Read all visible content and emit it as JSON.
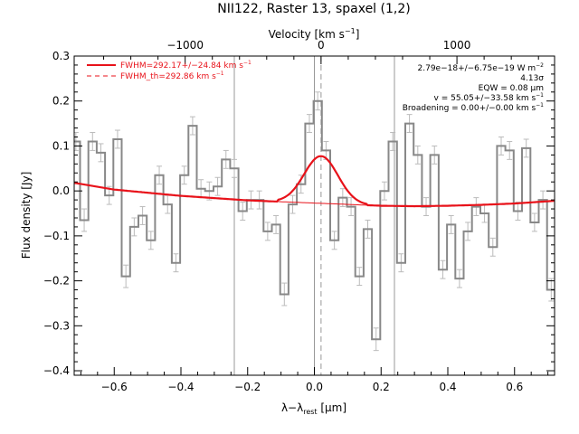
{
  "colors": {
    "data": "#888888",
    "fit": "#e8121a",
    "fit_th": "#e8121a",
    "axes": "#000000",
    "marker": "#999999"
  },
  "chart_data": {
    "type": "line",
    "title": "NII122, Raster 13, spaxel (1,2)",
    "xlabel": "λ−λrest [μm]",
    "xlabel_parts": {
      "main": "λ−λ",
      "sub": "rest",
      "units": " [μm]"
    },
    "ylabel": "Flux density [Jy]",
    "top_axis_label": "Velocity [km s−1]",
    "top_axis_label_parts": {
      "main": "Velocity [km s",
      "sup": "−1",
      "end": "]"
    },
    "xlim": [
      -0.72,
      0.72
    ],
    "ylim": [
      -0.41,
      0.3
    ],
    "x_ticks": [
      -0.6,
      -0.4,
      -0.2,
      0.0,
      0.2,
      0.4,
      0.6
    ],
    "x_tick_labels": [
      "−0.6",
      "−0.4",
      "−0.2",
      "0.0",
      "0.2",
      "0.4",
      "0.6"
    ],
    "y_ticks": [
      -0.4,
      -0.3,
      -0.2,
      -0.1,
      0.0,
      0.1,
      0.2,
      0.3
    ],
    "y_tick_labels": [
      "−0.4",
      "−0.3",
      "−0.2",
      "−0.1",
      "0.0",
      "0.1",
      "0.2",
      "0.3"
    ],
    "top_ticks_velocity": [
      -1000,
      0,
      1000
    ],
    "top_tick_labels": [
      "−1000",
      "0",
      "1000"
    ],
    "line_center_um": 0.02,
    "velocity_scale_km_s_per_um": 2455,
    "vertical_markers": [
      -0.24,
      0.0,
      0.24
    ],
    "center_marker": 0.02,
    "grid": false,
    "legend": {
      "placement": "top-left",
      "entries": [
        {
          "text": "FWHM=292.17+/−24.84 km s",
          "sup": "−1",
          "style": "solid"
        },
        {
          "text": "FWHM_th=292.86 km s",
          "sup": "−1",
          "style": "dashed"
        }
      ]
    },
    "annotations": [
      {
        "text": "2.79e−18+/−6.75e−19 W m",
        "sup": "−2"
      },
      {
        "text": "4.13σ",
        "sup": ""
      },
      {
        "text": "EQW = 0.08 μm",
        "sup": ""
      },
      {
        "text": "v = 55.05+/−33.58 km s",
        "sup": "−1"
      },
      {
        "text": "Broadening = 0.00+/−0.00 km s",
        "sup": "−1"
      }
    ],
    "step_series": {
      "name": "",
      "x": [
        -0.715,
        -0.69,
        -0.665,
        -0.64,
        -0.615,
        -0.59,
        -0.565,
        -0.54,
        -0.515,
        -0.49,
        -0.465,
        -0.44,
        -0.415,
        -0.39,
        -0.365,
        -0.34,
        -0.315,
        -0.29,
        -0.265,
        -0.24,
        -0.215,
        -0.19,
        -0.165,
        -0.14,
        -0.115,
        -0.09,
        -0.065,
        -0.04,
        -0.015,
        0.01,
        0.035,
        0.06,
        0.085,
        0.11,
        0.135,
        0.16,
        0.185,
        0.21,
        0.235,
        0.26,
        0.285,
        0.31,
        0.335,
        0.36,
        0.385,
        0.41,
        0.435,
        0.46,
        0.485,
        0.51,
        0.535,
        0.56,
        0.585,
        0.61,
        0.635,
        0.66,
        0.685,
        0.71
      ],
      "y": [
        0.11,
        -0.065,
        0.11,
        0.085,
        -0.01,
        0.115,
        -0.19,
        -0.08,
        -0.055,
        -0.11,
        0.035,
        -0.03,
        -0.16,
        0.035,
        0.145,
        0.005,
        0.0,
        0.01,
        0.07,
        0.05,
        -0.045,
        -0.02,
        -0.02,
        -0.09,
        -0.075,
        -0.23,
        -0.03,
        0.015,
        0.15,
        0.2,
        0.09,
        -0.11,
        -0.015,
        -0.035,
        -0.19,
        -0.085,
        -0.33,
        0.0,
        0.11,
        -0.16,
        0.15,
        0.08,
        -0.035,
        0.08,
        -0.175,
        -0.075,
        -0.195,
        -0.09,
        -0.035,
        -0.05,
        -0.125,
        0.1,
        0.09,
        -0.045,
        0.095,
        -0.07,
        -0.02,
        -0.22
      ],
      "errors": [
        0.02,
        0.025,
        0.02,
        0.02,
        0.02,
        0.02,
        0.025,
        0.02,
        0.02,
        0.02,
        0.02,
        0.02,
        0.02,
        0.02,
        0.02,
        0.02,
        0.02,
        0.02,
        0.02,
        0.02,
        0.02,
        0.02,
        0.02,
        0.02,
        0.02,
        0.025,
        0.02,
        0.02,
        0.02,
        0.02,
        0.02,
        0.02,
        0.02,
        0.02,
        0.02,
        0.02,
        0.025,
        0.02,
        0.02,
        0.02,
        0.02,
        0.02,
        0.02,
        0.02,
        0.02,
        0.02,
        0.02,
        0.02,
        0.02,
        0.02,
        0.02,
        0.02,
        0.02,
        0.02,
        0.02,
        0.02,
        0.02,
        0.025
      ]
    },
    "baseline": {
      "x": [
        -0.72,
        -0.6,
        -0.4,
        -0.2,
        0.0,
        0.1,
        0.2,
        0.3,
        0.4,
        0.5,
        0.6,
        0.72
      ],
      "y": [
        0.018,
        0.003,
        -0.011,
        -0.021,
        -0.027,
        -0.03,
        -0.033,
        -0.034,
        -0.033,
        -0.031,
        -0.028,
        -0.022
      ]
    },
    "gaussian_fit": {
      "center": 0.02,
      "amplitude": 0.105,
      "fwhm_um": 0.119,
      "x_range": [
        -0.11,
        0.16
      ]
    }
  }
}
